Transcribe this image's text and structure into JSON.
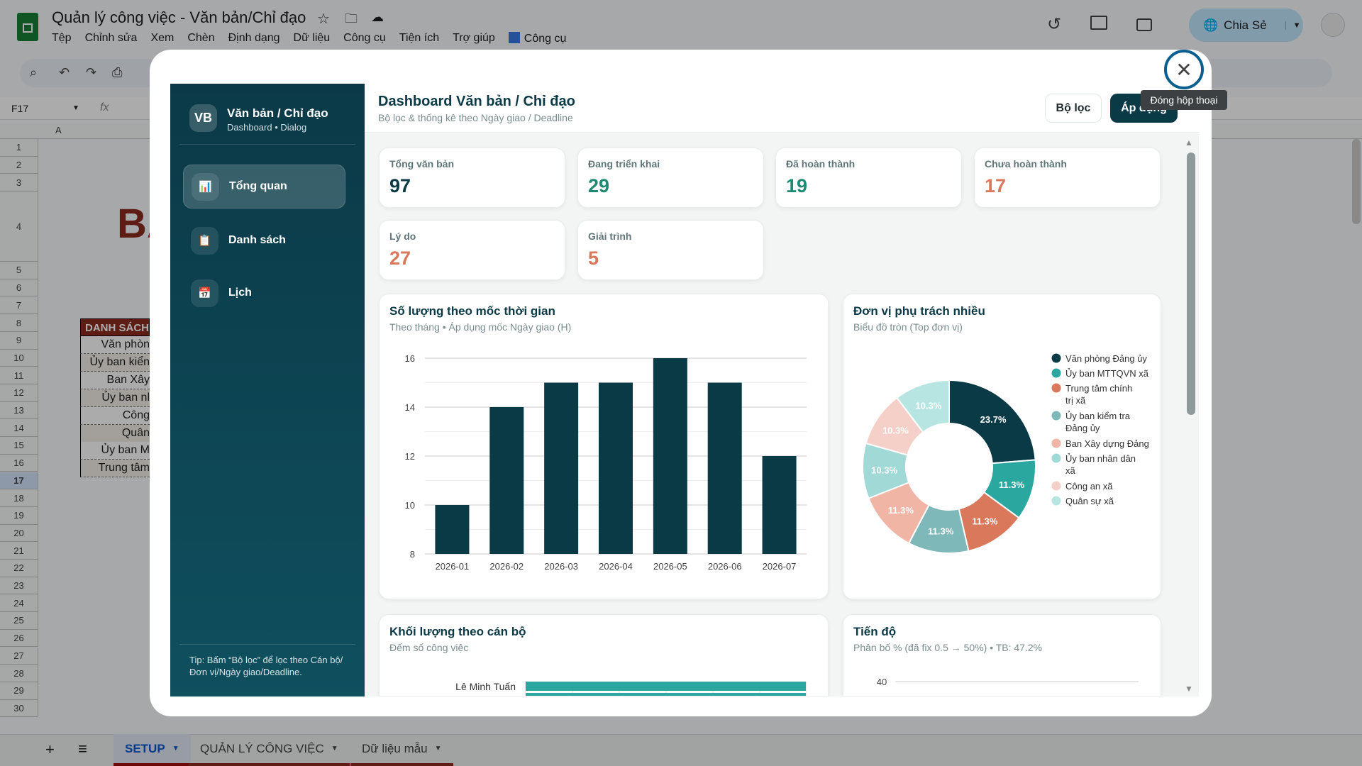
{
  "app": {
    "title": "Quản lý công việc - Văn bản/Chỉ đạo",
    "menu": [
      "Tệp",
      "Chỉnh sửa",
      "Xem",
      "Chèn",
      "Định dạng",
      "Dữ liệu",
      "Công cụ",
      "Tiện ích",
      "Trợ giúp",
      "Công cụ"
    ],
    "share_label": "Chia Sẻ",
    "name_box": "F17",
    "fx": "fx",
    "col_a": "A"
  },
  "sheet": {
    "rows": [
      "1",
      "2",
      "3",
      "4",
      "5",
      "6",
      "7",
      "8",
      "9",
      "10",
      "11",
      "12",
      "13",
      "14",
      "15",
      "16",
      "17",
      "18",
      "19",
      "20",
      "21",
      "22",
      "23",
      "24",
      "25",
      "26",
      "27",
      "28",
      "29",
      "30"
    ],
    "selected_row": "17",
    "big_title": "BẢ",
    "table_header": "DANH SÁCH",
    "table_cells": [
      "Văn phòn",
      "Ủy ban kiển",
      "Ban Xây",
      "Ủy ban nl",
      "Công",
      "Quân",
      "Ủy ban M",
      "Trung tâm"
    ],
    "tabs": [
      {
        "label": "SETUP",
        "active": true
      },
      {
        "label": "QUẢN LÝ CÔNG VIỆC"
      },
      {
        "label": "Dữ liệu mẫu"
      }
    ]
  },
  "dialog": {
    "close_tooltip": "Đóng hộp thoại",
    "sidebar": {
      "logo": "VB",
      "title": "Văn bản / Chỉ đạo",
      "subtitle": "Dashboard • Dialog",
      "items": [
        {
          "label": "Tổng quan",
          "icon": "bar-chart-icon",
          "active": true
        },
        {
          "label": "Danh sách",
          "icon": "clipboard-icon"
        },
        {
          "label": "Lịch",
          "icon": "calendar-icon"
        }
      ],
      "tip": "Tip: Bấm “Bộ lọc” để lọc theo Cán bộ/Đơn vị/Ngày giao/Deadline."
    },
    "header": {
      "title": "Dashboard Văn bản / Chỉ đạo",
      "subtitle": "Bộ lọc & thống kê theo Ngày giao / Deadline",
      "filter_label": "Bộ lọc",
      "apply_label": "Áp dụng"
    },
    "stats": [
      {
        "label": "Tổng văn bản",
        "value": "97",
        "color": "#0b3a47"
      },
      {
        "label": "Đang triển khai",
        "value": "29",
        "color": "#1f8a73"
      },
      {
        "label": "Đã hoàn thành",
        "value": "19",
        "color": "#1f8a73"
      },
      {
        "label": "Chưa hoàn thành",
        "value": "17",
        "color": "#d9785a"
      },
      {
        "label": "Lý do",
        "value": "27",
        "color": "#d9785a"
      },
      {
        "label": "Giải trình",
        "value": "5",
        "color": "#d9785a"
      }
    ],
    "cards": {
      "timeline": {
        "title": "Số lượng theo mốc thời gian",
        "subtitle": "Theo tháng • Áp dụng mốc Ngày giao (H)"
      },
      "units": {
        "title": "Đơn vị phụ trách nhiều",
        "subtitle": "Biểu đồ tròn (Top đơn vị)"
      },
      "staff": {
        "title": "Khối lượng theo cán bộ",
        "subtitle": "Đếm số công việc"
      },
      "progress": {
        "title": "Tiến độ",
        "subtitle": "Phân bố % (đã fix 0.5 → 50%) • TB: 47.2%"
      }
    }
  },
  "chart_data": [
    {
      "type": "bar",
      "categories": [
        "2026-01",
        "2026-02",
        "2026-03",
        "2026-04",
        "2026-05",
        "2026-06",
        "2026-07"
      ],
      "values": [
        10,
        14,
        15,
        15,
        16,
        15,
        12
      ],
      "ylim": [
        8,
        16
      ],
      "yticks": [
        8,
        10,
        12,
        14,
        16
      ],
      "grid": true,
      "color": "#0b3a47"
    },
    {
      "type": "pie",
      "donut": true,
      "legend": "right",
      "labels": [
        "Văn phòng Đảng ủy",
        "Ủy ban MTTQVN xã",
        "Trung tâm chính trị xã",
        "Ủy ban kiểm tra Đảng ủy",
        "Ban Xây dựng Đảng",
        "Ủy ban nhân dân xã",
        "Công an xã",
        "Quân sự xã"
      ],
      "values": [
        23.7,
        11.3,
        11.3,
        11.3,
        11.3,
        10.3,
        10.3,
        10.3
      ],
      "value_labels": [
        "23.7%",
        "11.3%",
        "11.3%",
        "11.3%",
        "11.3%",
        "10.3%",
        "10.3%",
        "10.3%"
      ],
      "colors": [
        "#0b3a47",
        "#2aa8a0",
        "#d9785a",
        "#7fb8b8",
        "#f0b5a5",
        "#a0d9d6",
        "#f5d0c8",
        "#b7e6e2"
      ]
    },
    {
      "type": "bar",
      "orientation": "horizontal",
      "categories": [
        "Lê Minh Tuấn"
      ],
      "color": "#2aa8a0"
    },
    {
      "type": "bar",
      "yticks": [
        40
      ]
    }
  ]
}
